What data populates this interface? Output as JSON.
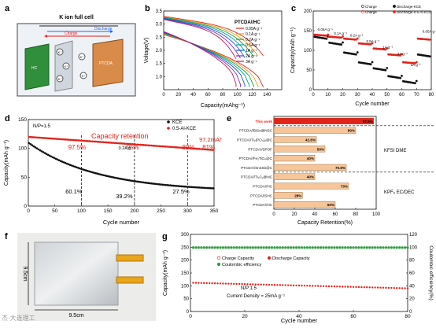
{
  "panels": {
    "a": {
      "label": "a",
      "title": "K ion full cell",
      "discharge": "Discharge",
      "charge": "Charge",
      "ion": "K⁺",
      "anode_label": "HC",
      "cathode_label": "PTCDA"
    },
    "b": {
      "label": "b",
      "chart_data": {
        "type": "line",
        "xlabel": "Capacity(mAhg⁻¹)",
        "ylabel": "Voltage(V)",
        "xlim": [
          0,
          160
        ],
        "ylim": [
          0.5,
          3.5
        ],
        "xticks": [
          "0",
          "20",
          "40",
          "60",
          "80",
          "100",
          "120",
          "140"
        ],
        "yticks": [
          "1.0",
          "1.5",
          "2.0",
          "2.5",
          "3.0",
          "3.5"
        ],
        "legend_title": "PTCDA//HC",
        "series": [
          {
            "name": "0.05A g⁻¹",
            "color": "#e2231a",
            "end": 135
          },
          {
            "name": "0.1A g⁻¹",
            "color": "#f39c12",
            "end": 128
          },
          {
            "name": "0.2A g⁻¹",
            "color": "#1f9c3f",
            "end": 122
          },
          {
            "name": "0.5A g⁻¹",
            "color": "#00a6a6",
            "end": 116
          },
          {
            "name": "1A g⁻¹",
            "color": "#1f4fd1",
            "end": 110
          },
          {
            "name": "2A g⁻¹",
            "color": "#7b2fbe",
            "end": 104
          },
          {
            "name": "3A g⁻¹",
            "color": "#c2185b",
            "end": 98
          }
        ]
      }
    },
    "c": {
      "label": "c",
      "chart_data": {
        "type": "scatter",
        "xlabel": "Cycle number",
        "ylabel": "Capacity(mAh g⁻¹)",
        "xlim": [
          0,
          80
        ],
        "ylim": [
          0,
          200
        ],
        "xticks": [
          "0",
          "10",
          "20",
          "30",
          "40",
          "50",
          "60",
          "70",
          "80"
        ],
        "yticks": [
          "0",
          "50",
          "100",
          "150",
          "200"
        ],
        "legend": [
          "Charge",
          "Discharge-KCE",
          "Charge",
          "Discharge-0.5-Al-KCE"
        ],
        "rate_labels": [
          {
            "text": "0.05A g⁻¹",
            "x": 3,
            "y": 150
          },
          {
            "text": "0.1A g⁻¹",
            "x": 14,
            "y": 140
          },
          {
            "text": "0.2A g⁻¹",
            "x": 25,
            "y": 135
          },
          {
            "text": "0.5A g⁻¹",
            "x": 36,
            "y": 120
          },
          {
            "text": "1A g⁻¹",
            "x": 47,
            "y": 105
          },
          {
            "text": "2A g⁻¹",
            "x": 57,
            "y": 88
          },
          {
            "text": "3A g⁻¹",
            "x": 66,
            "y": 60
          },
          {
            "text": "0.05A g⁻¹",
            "x": 74,
            "y": 145
          }
        ],
        "kce_steps": [
          135,
          120,
          95,
          70,
          55,
          35,
          22,
          90
        ],
        "al_steps": [
          140,
          135,
          130,
          118,
          105,
          90,
          70,
          130
        ]
      }
    },
    "d": {
      "label": "d",
      "chart_data": {
        "type": "line",
        "xlabel": "Cycle number",
        "ylabel": "Capacity(mAh g⁻¹)",
        "xlim": [
          0,
          350
        ],
        "ylim": [
          0,
          150
        ],
        "xticks": [
          "0",
          "50",
          "100",
          "150",
          "200",
          "250",
          "300",
          "350"
        ],
        "yticks": [
          "0",
          "50",
          "100",
          "150"
        ],
        "np": "N/P=1.5",
        "legend": [
          "KCE",
          "0.5-Al-KCE"
        ],
        "retention_title": "Capacity retention",
        "red_retention": [
          "97.5%",
          "95%",
          "89%",
          "81%"
        ],
        "black_retention": [
          "60.1%",
          "39.2%",
          "27.5%"
        ],
        "rate_note": "0.2A g⁻¹",
        "end_value": "97.2mAh/g",
        "dashed_x": [
          100,
          200,
          300
        ]
      }
    },
    "e": {
      "label": "e",
      "chart_data": {
        "type": "bar",
        "xlabel": "Capacity Retention(%)",
        "xlim": [
          0,
          100
        ],
        "xticks": [
          "0",
          "20",
          "40",
          "60",
          "80",
          "100"
        ],
        "categories": [
          "This work",
          "PTCDA//BiSe@NSC",
          "PTCDA//Ti₂(PO₄)₃@C",
          "PTCDA//SPOF",
          "PTCDA//Fe₃TiO₄@C",
          "PTCDA//Sn4Sb@C",
          "PTCDA//Ti₃C₂@NC",
          "PTCDA//HC",
          "PTCDA//SHC",
          "PTCDA//HC"
        ],
        "values": [
          97.5,
          80,
          41.6,
          50,
          40,
          70.8,
          40,
          73,
          28,
          60
        ],
        "value_labels": [
          "97.5%",
          "80%",
          "41.6%",
          "50%",
          "40%",
          "70.8%",
          "40%",
          "73%",
          "28%",
          "60%"
        ],
        "group_labels": [
          "KFSI DME",
          "KPF₆ EC/DEC"
        ],
        "bar_color": "#f6c69a",
        "highlight_color": "#e2231a"
      }
    },
    "f": {
      "label": "f",
      "width": "9.5cm",
      "height": "9.5cm"
    },
    "g": {
      "label": "g",
      "chart_data": {
        "type": "scatter",
        "xlabel": "Cycle number",
        "ylabel": "Capacity(mAh g⁻¹)",
        "y2label": "Coulombic efficiency(%)",
        "xlim": [
          0,
          80
        ],
        "ylim": [
          0,
          300
        ],
        "y2lim": [
          0,
          120
        ],
        "xticks": [
          "0",
          "20",
          "40",
          "60",
          "80"
        ],
        "yticks": [
          "0",
          "50",
          "100",
          "150",
          "200",
          "250",
          "300"
        ],
        "y2ticks": [
          "0",
          "20",
          "40",
          "60",
          "80",
          "100",
          "120"
        ],
        "legend": [
          "Charge Capacity",
          "Discharge Capacity",
          "Coulombic efficiency"
        ],
        "np": "N/P:1.5",
        "current": "Current Density = 25mA g⁻¹",
        "capacity_start": 112,
        "capacity_end": 90,
        "ce": 99.5
      }
    }
  },
  "watermark": "杰·大连理工"
}
